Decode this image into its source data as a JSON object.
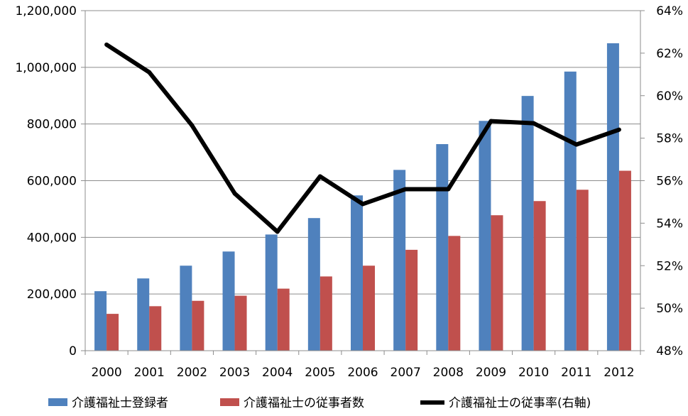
{
  "chart_data": {
    "type": "bar",
    "categories": [
      "2000",
      "2001",
      "2002",
      "2003",
      "2004",
      "2005",
      "2006",
      "2007",
      "2008",
      "2009",
      "2010",
      "2011",
      "2012"
    ],
    "series": [
      {
        "name": "介護福祉士登録者",
        "type": "bar",
        "axis": "left",
        "color": "#4F81BD",
        "values": [
          210000,
          255000,
          300000,
          350000,
          410000,
          468000,
          548000,
          638000,
          729000,
          811000,
          899000,
          985000,
          1085000
        ]
      },
      {
        "name": "介護福祉士の従事者数",
        "type": "bar",
        "axis": "left",
        "color": "#C0504D",
        "values": [
          130000,
          157000,
          176000,
          194000,
          219000,
          262000,
          300000,
          356000,
          405000,
          478000,
          528000,
          568000,
          635000
        ]
      },
      {
        "name": "介護福祉士の従事率(右軸)",
        "type": "line",
        "axis": "right",
        "color": "#000000",
        "values": [
          62.4,
          61.1,
          58.6,
          55.4,
          53.6,
          56.2,
          54.9,
          55.6,
          55.6,
          58.8,
          58.7,
          57.7,
          58.4
        ]
      }
    ],
    "y_left": {
      "min": 0,
      "max": 1200000,
      "ticks": [
        "0",
        "200,000",
        "400,000",
        "600,000",
        "800,000",
        "1,000,000",
        "1,200,000"
      ]
    },
    "y_right": {
      "min": 48,
      "max": 64,
      "unit": "%",
      "ticks": [
        "48%",
        "50%",
        "52%",
        "54%",
        "56%",
        "58%",
        "60%",
        "62%",
        "64%"
      ]
    },
    "title": "",
    "xlabel": "",
    "ylabel": "",
    "grid": true,
    "legend_position": "bottom"
  }
}
